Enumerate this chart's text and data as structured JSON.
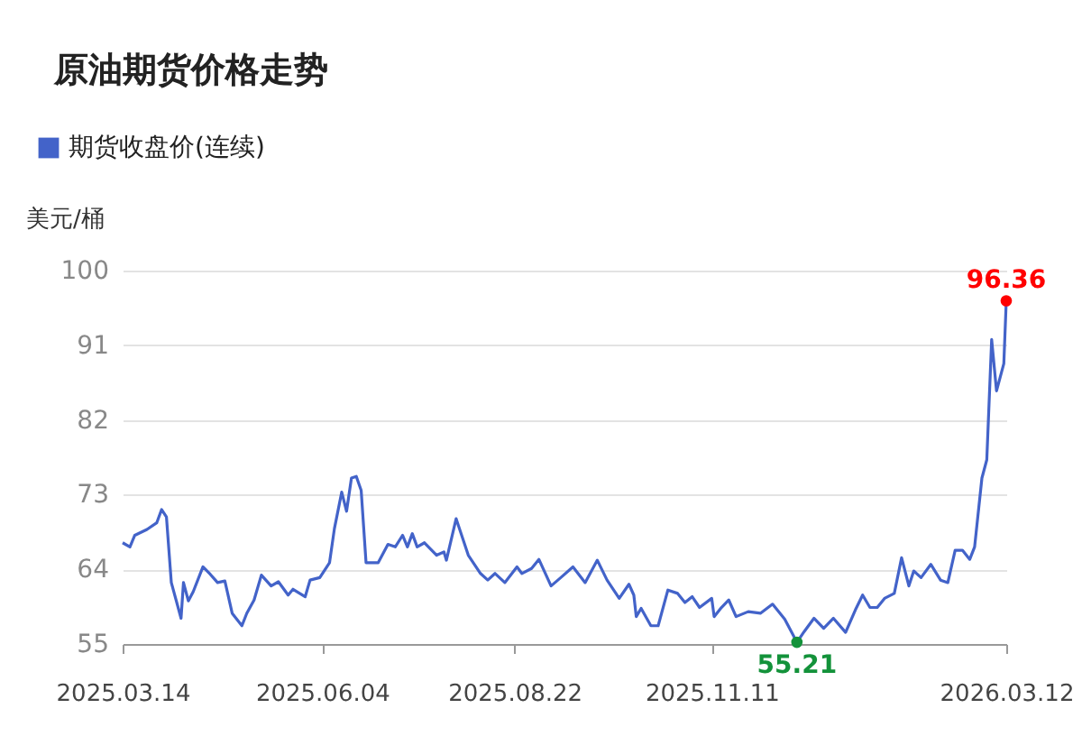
{
  "chart_data": {
    "type": "line",
    "title": "原油期货价格走势",
    "ylabel": "美元/桶",
    "legend": "top left",
    "grid": "y",
    "x": [
      "2025-03-14",
      "2025-03-17",
      "2025-03-19",
      "2025-03-24",
      "2025-03-28",
      "2025-03-30",
      "2025-04-01",
      "2025-04-03",
      "2025-04-07",
      "2025-04-08",
      "2025-04-10",
      "2025-04-12",
      "2025-04-16",
      "2025-04-19",
      "2025-04-22",
      "2025-04-25",
      "2025-04-28",
      "2025-05-02",
      "2025-05-04",
      "2025-05-07",
      "2025-05-10",
      "2025-05-14",
      "2025-05-17",
      "2025-05-21",
      "2025-05-23",
      "2025-05-28",
      "2025-05-30",
      "2025-06-03",
      "2025-06-07",
      "2025-06-09",
      "2025-06-12",
      "2025-06-14",
      "2025-06-16",
      "2025-06-18",
      "2025-06-20",
      "2025-06-22",
      "2025-06-27",
      "2025-07-01",
      "2025-07-04",
      "2025-07-07",
      "2025-07-09",
      "2025-07-11",
      "2025-07-13",
      "2025-07-16",
      "2025-07-21",
      "2025-07-24",
      "2025-07-25",
      "2025-07-29",
      "2025-08-03",
      "2025-08-08",
      "2025-08-11",
      "2025-08-14",
      "2025-08-18",
      "2025-08-23",
      "2025-08-25",
      "2025-08-29",
      "2025-09-01",
      "2025-09-06",
      "2025-09-10",
      "2025-09-15",
      "2025-09-20",
      "2025-09-25",
      "2025-09-29",
      "2025-10-04",
      "2025-10-08",
      "2025-10-10",
      "2025-10-11",
      "2025-10-13",
      "2025-10-17",
      "2025-10-20",
      "2025-10-24",
      "2025-10-28",
      "2025-10-31",
      "2025-11-03",
      "2025-11-06",
      "2025-11-11",
      "2025-11-12",
      "2025-11-15",
      "2025-11-18",
      "2025-11-21",
      "2025-11-26",
      "2025-12-01",
      "2025-12-06",
      "2025-12-11",
      "2025-12-16",
      "2025-12-19",
      "2025-12-23",
      "2025-12-27",
      "2025-12-31",
      "2026-01-05",
      "2026-01-09",
      "2026-01-12",
      "2026-01-15",
      "2026-01-18",
      "2026-01-21",
      "2026-01-25",
      "2026-01-28",
      "2026-01-31",
      "2026-02-02",
      "2026-02-05",
      "2026-02-09",
      "2026-02-13",
      "2026-02-16",
      "2026-02-19",
      "2026-02-22",
      "2026-02-25",
      "2026-02-27",
      "2026-03-02",
      "2026-03-04",
      "2026-03-06",
      "2026-03-08",
      "2026-03-11",
      "2026-03-12"
    ],
    "series": [
      {
        "name": "期货收盘价(连续)",
        "color": "#4363c9",
        "values": [
          67.2,
          66.7,
          68.1,
          68.8,
          69.6,
          71.2,
          70.3,
          62.4,
          58.1,
          62.4,
          60.2,
          61.3,
          64.3,
          63.4,
          62.4,
          62.6,
          58.7,
          57.2,
          58.7,
          60.3,
          63.3,
          62,
          62.5,
          60.9,
          61.6,
          60.7,
          62.7,
          63,
          64.8,
          68.9,
          73.3,
          71,
          75,
          75.2,
          73.5,
          64.8,
          64.8,
          67,
          66.7,
          68.1,
          66.7,
          68.3,
          66.7,
          67.2,
          65.7,
          66.1,
          65.1,
          70.1,
          65.7,
          63.5,
          62.7,
          63.5,
          62.4,
          64.3,
          63.5,
          64.1,
          65.2,
          62,
          63,
          64.3,
          62.4,
          65.1,
          62.7,
          60.5,
          62.2,
          60.9,
          58.3,
          59.3,
          57.2,
          57.2,
          61.5,
          61.1,
          60,
          60.7,
          59.4,
          60.5,
          58.3,
          59.4,
          60.3,
          58.3,
          58.9,
          58.7,
          59.8,
          58,
          55.21,
          56.5,
          58.1,
          56.9,
          58.1,
          56.4,
          59.1,
          60.9,
          59.4,
          59.4,
          60.5,
          61.1,
          65.4,
          62,
          63.8,
          63,
          64.6,
          62.7,
          62.4,
          66.3,
          66.3,
          65.2,
          66.7,
          75,
          77.2,
          91.7,
          85.5,
          88.8,
          96.36
        ]
      }
    ],
    "xlim": [
      "2025-03-14",
      "2026-03-12"
    ],
    "xticks": [
      {
        "value": "2025-03-14",
        "label": "2025.03.14"
      },
      {
        "value": "2025-06-04",
        "label": "2025.06.04"
      },
      {
        "value": "2025-08-22",
        "label": "2025.08.22"
      },
      {
        "value": "2025-11-11",
        "label": "2025.11.11"
      },
      {
        "value": "2026-03-12",
        "label": "2026.03.12"
      }
    ],
    "ylim": [
      55,
      100
    ],
    "yticks": [
      55,
      64,
      73,
      82,
      91,
      100
    ],
    "annotations": [
      {
        "text": "96.36",
        "x": "2026-03-12",
        "y": 96.36
      },
      {
        "text": "55.21",
        "x": "2025-12-16",
        "y": 55.21
      }
    ]
  }
}
